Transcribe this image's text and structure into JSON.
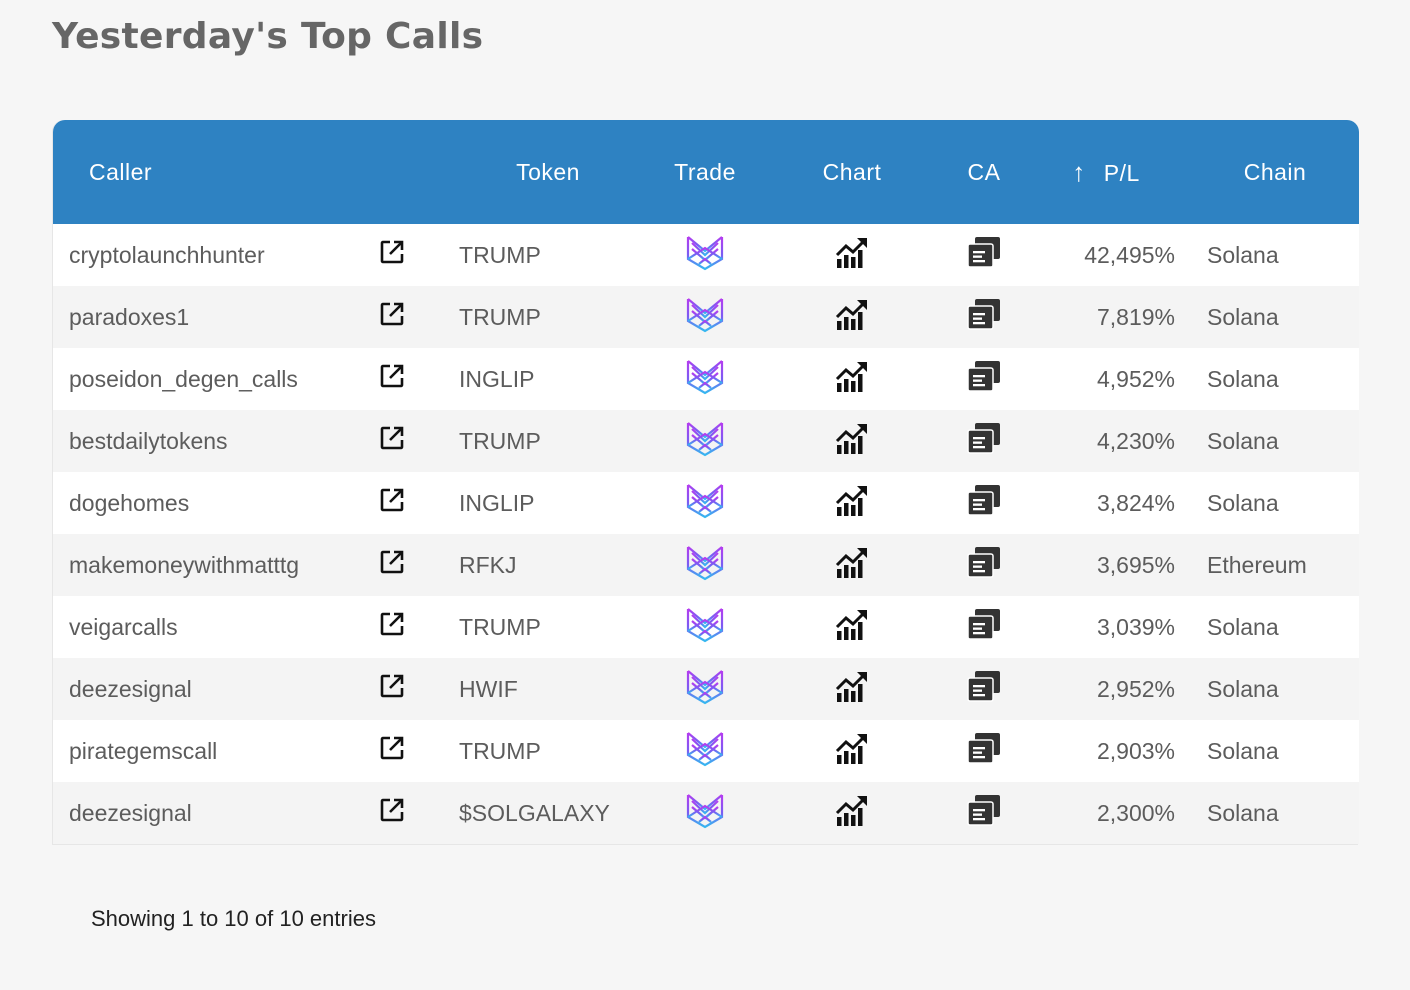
{
  "page": {
    "title": "Yesterday's Top Calls"
  },
  "table": {
    "headers": {
      "caller": "Caller",
      "token": "Token",
      "trade": "Trade",
      "chart": "Chart",
      "ca": "CA",
      "pl_sort_arrow": "↑",
      "pl": "P/L",
      "chain": "Chain"
    },
    "header_color": "#2e82c2",
    "rows": [
      {
        "caller": "cryptolaunchhunter",
        "token": "TRUMP",
        "pl": "42,495%",
        "chain": "Solana"
      },
      {
        "caller": "paradoxes1",
        "token": "TRUMP",
        "pl": "7,819%",
        "chain": "Solana"
      },
      {
        "caller": "poseidon_degen_calls",
        "token": "INGLIP",
        "pl": "4,952%",
        "chain": "Solana"
      },
      {
        "caller": "bestdailytokens",
        "token": "TRUMP",
        "pl": "4,230%",
        "chain": "Solana"
      },
      {
        "caller": "dogehomes",
        "token": "INGLIP",
        "pl": "3,824%",
        "chain": "Solana"
      },
      {
        "caller": "makemoneywithmatttg",
        "token": "RFKJ",
        "pl": "3,695%",
        "chain": "Ethereum"
      },
      {
        "caller": "veigarcalls",
        "token": "TRUMP",
        "pl": "3,039%",
        "chain": "Solana"
      },
      {
        "caller": "deezesignal",
        "token": "HWIF",
        "pl": "2,952%",
        "chain": "Solana"
      },
      {
        "caller": "pirategemscall",
        "token": "TRUMP",
        "pl": "2,903%",
        "chain": "Solana"
      },
      {
        "caller": "deezesignal",
        "token": "$SOLGALAXY",
        "pl": "2,300%",
        "chain": "Solana"
      }
    ],
    "icons": {
      "link": "external-link-icon",
      "trade": "trade-logo-icon",
      "chart": "chart-growth-icon",
      "ca": "copy-icon"
    }
  },
  "footer": {
    "info": "Showing 1 to 10 of 10 entries"
  }
}
